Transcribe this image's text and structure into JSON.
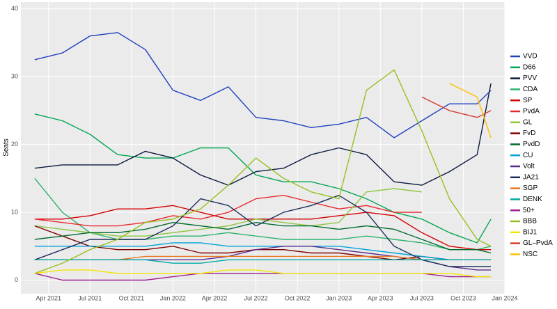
{
  "chart_data": {
    "type": "line",
    "ylabel": "Seats",
    "x": [
      "2021-03",
      "2021-05",
      "2021-07",
      "2021-09",
      "2021-11",
      "2022-01",
      "2022-03",
      "2022-05",
      "2022-07",
      "2022-09",
      "2022-11",
      "2023-01",
      "2023-03",
      "2023-05",
      "2023-07",
      "2023-09",
      "2023-11",
      "2023-12"
    ],
    "xlim": [
      "2021-02",
      "2024-01"
    ],
    "xticks": [
      {
        "value": "2021-04",
        "label": "Apr 2021"
      },
      {
        "value": "2021-07",
        "label": "Jul 2021"
      },
      {
        "value": "2021-10",
        "label": "Oct 2021"
      },
      {
        "value": "2022-01",
        "label": "Jan 2022"
      },
      {
        "value": "2022-04",
        "label": "Apr 2022"
      },
      {
        "value": "2022-07",
        "label": "Jul 2022"
      },
      {
        "value": "2022-10",
        "label": "Oct 2022"
      },
      {
        "value": "2023-01",
        "label": "Jan 2023"
      },
      {
        "value": "2023-04",
        "label": "Apr 2023"
      },
      {
        "value": "2023-07",
        "label": "Jul 2023"
      },
      {
        "value": "2023-10",
        "label": "Oct 2023"
      },
      {
        "value": "2024-01",
        "label": "Jan 2024"
      }
    ],
    "ylim": [
      -2,
      41
    ],
    "yticks": [
      0,
      10,
      20,
      30,
      40
    ],
    "grid": true,
    "legend": "right",
    "series": [
      {
        "name": "VVD",
        "color": "#1f3fbf",
        "values": [
          32.5,
          33.5,
          36,
          36.5,
          34,
          28,
          26.5,
          28.5,
          24,
          23.5,
          22.5,
          23,
          24,
          21,
          23.5,
          26,
          26,
          28
        ]
      },
      {
        "name": "D66",
        "color": "#00a650",
        "values": [
          24.5,
          23.5,
          21.5,
          18.5,
          18,
          18,
          19.5,
          19.5,
          15.5,
          14.5,
          14.5,
          13.5,
          12,
          10,
          9,
          7,
          5.5,
          9
        ]
      },
      {
        "name": "PVV",
        "color": "#0a1a3c",
        "values": [
          16.5,
          17,
          17,
          17,
          19,
          18,
          15.5,
          14,
          16,
          16.5,
          18.5,
          19.5,
          18.5,
          14.5,
          14,
          16,
          18.5,
          29
        ]
      },
      {
        "name": "CDA",
        "color": "#2db36b",
        "values": [
          15,
          10,
          7,
          6,
          6,
          6.5,
          6.5,
          7,
          6.5,
          6,
          6,
          6,
          6.5,
          6,
          5.5,
          4.5,
          4.5,
          5
        ]
      },
      {
        "name": "SP",
        "color": "#d40000",
        "values": [
          9,
          9,
          9.5,
          10.5,
          10.5,
          11,
          10,
          9,
          9,
          9,
          9,
          9.5,
          10,
          9.5,
          7,
          5,
          4.5,
          4.5
        ]
      },
      {
        "name": "PvdA",
        "color": "#e8282d",
        "values": [
          9,
          8.5,
          8,
          8,
          8.5,
          9.5,
          9,
          10,
          12,
          12.5,
          11.5,
          10.5,
          11,
          10,
          10,
          null,
          null,
          null
        ]
      },
      {
        "name": "GL",
        "color": "#8dc63f",
        "values": [
          8,
          7.5,
          7,
          6.5,
          6.5,
          7,
          7.5,
          8,
          9,
          8.5,
          8,
          8.5,
          13,
          13.5,
          13,
          null,
          null,
          null
        ]
      },
      {
        "name": "FvD",
        "color": "#800000",
        "values": [
          8,
          6.5,
          5,
          4.5,
          4.5,
          5,
          4,
          4,
          4.5,
          4.5,
          4,
          4,
          3.5,
          3,
          3.5,
          3,
          3,
          3
        ]
      },
      {
        "name": "PvdD",
        "color": "#006b2e",
        "values": [
          6,
          6.5,
          7,
          7,
          7.5,
          8.5,
          8,
          7.5,
          8.5,
          8,
          8,
          7.5,
          8,
          7.5,
          6,
          4.5,
          4.5,
          4
        ]
      },
      {
        "name": "CU",
        "color": "#00a3d9",
        "values": [
          5,
          5,
          5,
          5,
          5,
          5.5,
          5.5,
          5,
          5,
          5,
          5,
          5,
          4.5,
          4,
          3.5,
          3,
          3,
          3
        ]
      },
      {
        "name": "Volt",
        "color": "#5b2d8e",
        "values": [
          3,
          3,
          3,
          3,
          3,
          3,
          3,
          3.5,
          4.5,
          5,
          5,
          4.5,
          4,
          3.5,
          3,
          2,
          1.5,
          1.5
        ]
      },
      {
        "name": "JA21",
        "color": "#1c2f5c",
        "values": [
          3,
          4.5,
          6,
          6,
          6,
          8,
          12,
          11,
          8,
          10,
          11,
          12.5,
          10,
          5,
          3,
          2,
          2,
          2
        ]
      },
      {
        "name": "SGP",
        "color": "#e87722",
        "values": [
          3,
          3,
          3,
          3,
          3.5,
          3.5,
          3.5,
          3.5,
          3.5,
          3.5,
          3.5,
          3.5,
          3.5,
          3.5,
          3,
          3,
          3,
          3
        ]
      },
      {
        "name": "DENK",
        "color": "#00a9a5",
        "values": [
          3,
          3,
          3,
          3,
          3,
          2.5,
          2.5,
          3,
          3,
          3,
          3,
          3,
          3,
          3,
          3,
          3,
          3,
          3
        ]
      },
      {
        "name": "50+",
        "color": "#9b1f8f",
        "values": [
          1,
          0,
          0,
          0,
          0,
          0.5,
          1,
          1,
          1,
          1,
          1,
          1,
          1,
          1,
          1,
          0.5,
          0.5,
          0.5
        ]
      },
      {
        "name": "BBB",
        "color": "#95c11f",
        "values": [
          1,
          2.5,
          4.5,
          6,
          8.5,
          9,
          10.5,
          14,
          18,
          15,
          13,
          12,
          28,
          31,
          22,
          12,
          6,
          5
        ]
      },
      {
        "name": "BIJ1",
        "color": "#f2e600",
        "values": [
          1,
          1.5,
          1.5,
          1,
          1,
          1,
          1,
          1.5,
          1.5,
          1,
          1,
          1,
          1,
          1,
          1,
          1,
          0.5,
          0.5
        ]
      },
      {
        "name": "GL–PvdA",
        "color": "#d63b2f",
        "values": [
          null,
          null,
          null,
          null,
          null,
          null,
          null,
          null,
          null,
          null,
          null,
          null,
          null,
          null,
          27,
          25,
          24,
          25
        ]
      },
      {
        "name": "NSC",
        "color": "#ffbf00",
        "values": [
          null,
          null,
          null,
          null,
          null,
          null,
          null,
          null,
          null,
          null,
          null,
          null,
          null,
          null,
          null,
          29,
          27,
          21
        ]
      }
    ]
  }
}
